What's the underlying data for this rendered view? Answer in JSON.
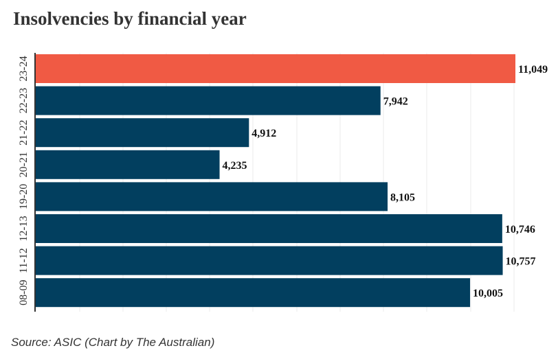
{
  "title": "Insolvencies by financial year",
  "source": "Source: ASIC (Chart by The Australian)",
  "colors": {
    "highlight": "#f05a44",
    "bar": "#023f5f",
    "grid": "#ebebeb",
    "axis": "#333333"
  },
  "chart_data": {
    "type": "bar",
    "orientation": "horizontal",
    "title": "Insolvencies by financial year",
    "xlabel": "",
    "ylabel": "",
    "categories": [
      "23-24",
      "22-23",
      "21-22",
      "20-21",
      "19-20",
      "12-13",
      "11-12",
      "08-09"
    ],
    "values": [
      11049,
      7942,
      4912,
      4235,
      8105,
      10746,
      10757,
      10005
    ],
    "value_labels": [
      "11,049",
      "7,942",
      "4,912",
      "4,235",
      "8,105",
      "10,746",
      "10,757",
      "10,005"
    ],
    "highlight_category": "23-24",
    "xlim": [
      0,
      11049
    ],
    "grid": true,
    "legend": "none"
  }
}
